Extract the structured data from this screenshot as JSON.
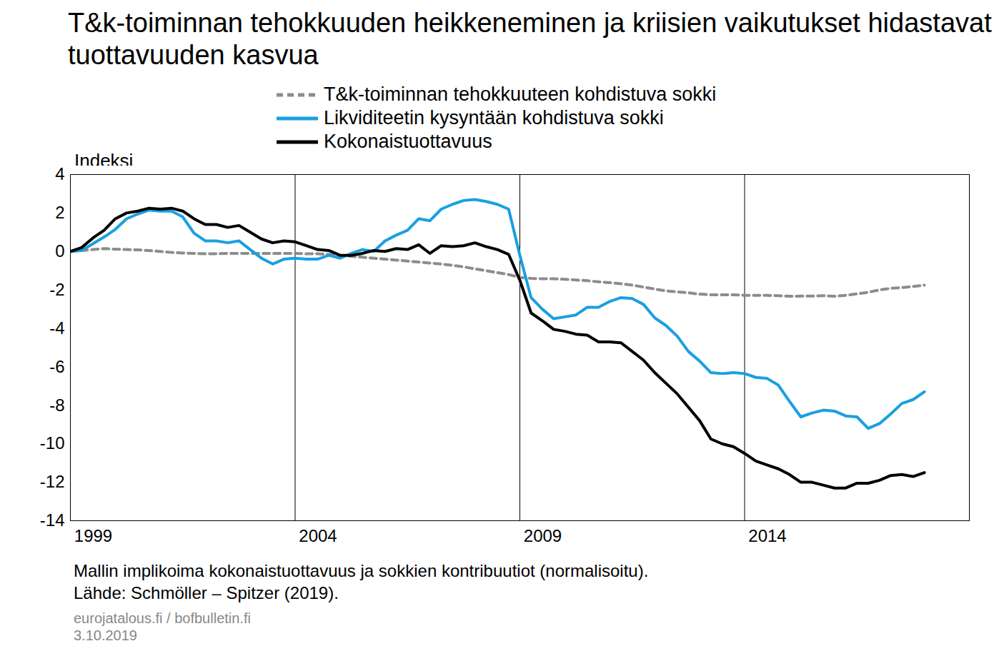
{
  "chart_data": {
    "type": "line",
    "title": "T&k-toiminnan tehokkuuden heikkeneminen ja kriisien vaikutukset hidastavat tuottavuuden kasvua",
    "y_label": "Indeksi",
    "notes": [
      "Mallin implikoima kokonaistuottavuus ja sokkien kontribuutiot (normalisoitu).",
      "Lähde: Schmöller – Spitzer (2019)."
    ],
    "footer": [
      "eurojatalous.fi / bofbulletin.fi",
      "3.10.2019"
    ],
    "xlim": [
      1999,
      2019
    ],
    "xticks": [
      1999,
      2004,
      2009,
      2014
    ],
    "ylim": [
      -14,
      4
    ],
    "yticks": [
      -14,
      -12,
      -10,
      -8,
      -6,
      -4,
      -2,
      0,
      2,
      4
    ],
    "grid": "x",
    "legend": "top",
    "x": [
      1999,
      1999.25,
      1999.5,
      1999.75,
      2000,
      2000.25,
      2000.5,
      2000.75,
      2001,
      2001.25,
      2001.5,
      2001.75,
      2002,
      2002.25,
      2002.5,
      2002.75,
      2003,
      2003.25,
      2003.5,
      2003.75,
      2004,
      2004.25,
      2004.5,
      2004.75,
      2005,
      2005.25,
      2005.5,
      2005.75,
      2006,
      2006.25,
      2006.5,
      2006.75,
      2007,
      2007.25,
      2007.5,
      2007.75,
      2008,
      2008.25,
      2008.5,
      2008.75,
      2009,
      2009.25,
      2009.5,
      2009.75,
      2010,
      2010.25,
      2010.5,
      2010.75,
      2011,
      2011.25,
      2011.5,
      2011.75,
      2012,
      2012.25,
      2012.5,
      2012.75,
      2013,
      2013.25,
      2013.5,
      2013.75,
      2014,
      2014.25,
      2014.5,
      2014.75,
      2015,
      2015.25,
      2015.5,
      2015.75,
      2016,
      2016.25,
      2016.5,
      2016.75,
      2017,
      2017.25,
      2017.5,
      2017.75,
      2018
    ],
    "series": [
      {
        "name": "T&k-toiminnan tehokkuuteen kohdistuva sokki",
        "color": "#8c8c8c",
        "line_style": "dashed",
        "values": [
          0,
          0.05,
          0.1,
          0.15,
          0.12,
          0.1,
          0.08,
          0.05,
          0.0,
          -0.05,
          -0.08,
          -0.1,
          -0.12,
          -0.12,
          -0.1,
          -0.1,
          -0.1,
          -0.1,
          -0.1,
          -0.1,
          -0.1,
          -0.12,
          -0.12,
          -0.15,
          -0.2,
          -0.25,
          -0.3,
          -0.35,
          -0.4,
          -0.45,
          -0.5,
          -0.55,
          -0.6,
          -0.65,
          -0.72,
          -0.8,
          -0.9,
          -1.0,
          -1.1,
          -1.2,
          -1.35,
          -1.4,
          -1.42,
          -1.42,
          -1.45,
          -1.48,
          -1.52,
          -1.58,
          -1.62,
          -1.68,
          -1.75,
          -1.85,
          -1.95,
          -2.05,
          -2.1,
          -2.15,
          -2.22,
          -2.25,
          -2.25,
          -2.25,
          -2.28,
          -2.28,
          -2.28,
          -2.3,
          -2.33,
          -2.32,
          -2.32,
          -2.3,
          -2.33,
          -2.28,
          -2.2,
          -2.12,
          -2.0,
          -1.92,
          -1.88,
          -1.82,
          -1.75
        ]
      },
      {
        "name": "Likviditeetin kysyntään kohdistuva sokki",
        "color": "#1aa0e0",
        "line_style": "solid",
        "values": [
          0,
          0.05,
          0.4,
          0.75,
          1.15,
          1.7,
          1.95,
          2.15,
          2.1,
          2.1,
          1.8,
          0.95,
          0.55,
          0.55,
          0.45,
          0.55,
          0.1,
          -0.35,
          -0.65,
          -0.4,
          -0.35,
          -0.4,
          -0.4,
          -0.2,
          -0.35,
          -0.1,
          0.1,
          0.0,
          0.55,
          0.85,
          1.1,
          1.7,
          1.6,
          2.2,
          2.45,
          2.65,
          2.7,
          2.6,
          2.45,
          2.2,
          -0.2,
          -2.4,
          -3.0,
          -3.5,
          -3.4,
          -3.3,
          -2.9,
          -2.9,
          -2.6,
          -2.4,
          -2.45,
          -2.75,
          -3.45,
          -3.85,
          -4.4,
          -5.2,
          -5.7,
          -6.3,
          -6.35,
          -6.3,
          -6.35,
          -6.55,
          -6.6,
          -6.95,
          -7.8,
          -8.6,
          -8.4,
          -8.25,
          -8.3,
          -8.55,
          -8.6,
          -9.2,
          -8.95,
          -8.45,
          -7.9,
          -7.7,
          -7.3
        ]
      },
      {
        "name": "Kokonaistuottavuus",
        "color": "#000000",
        "line_style": "solid",
        "values": [
          0,
          0.2,
          0.7,
          1.1,
          1.7,
          2.0,
          2.1,
          2.25,
          2.2,
          2.25,
          2.1,
          1.7,
          1.4,
          1.4,
          1.25,
          1.35,
          1.0,
          0.65,
          0.45,
          0.55,
          0.5,
          0.3,
          0.1,
          0.05,
          -0.2,
          -0.2,
          -0.1,
          0.05,
          0.0,
          0.15,
          0.1,
          0.35,
          -0.1,
          0.3,
          0.25,
          0.3,
          0.45,
          0.25,
          0.1,
          -0.15,
          -1.5,
          -3.2,
          -3.6,
          -4.05,
          -4.15,
          -4.3,
          -4.35,
          -4.7,
          -4.7,
          -4.75,
          -5.2,
          -5.65,
          -6.3,
          -6.85,
          -7.4,
          -8.1,
          -8.8,
          -9.75,
          -10.0,
          -10.15,
          -10.5,
          -10.9,
          -11.1,
          -11.3,
          -11.6,
          -12.0,
          -12.0,
          -12.15,
          -12.3,
          -12.3,
          -12.05,
          -12.05,
          -11.9,
          -11.65,
          -11.6,
          -11.7,
          -11.5
        ]
      }
    ]
  }
}
